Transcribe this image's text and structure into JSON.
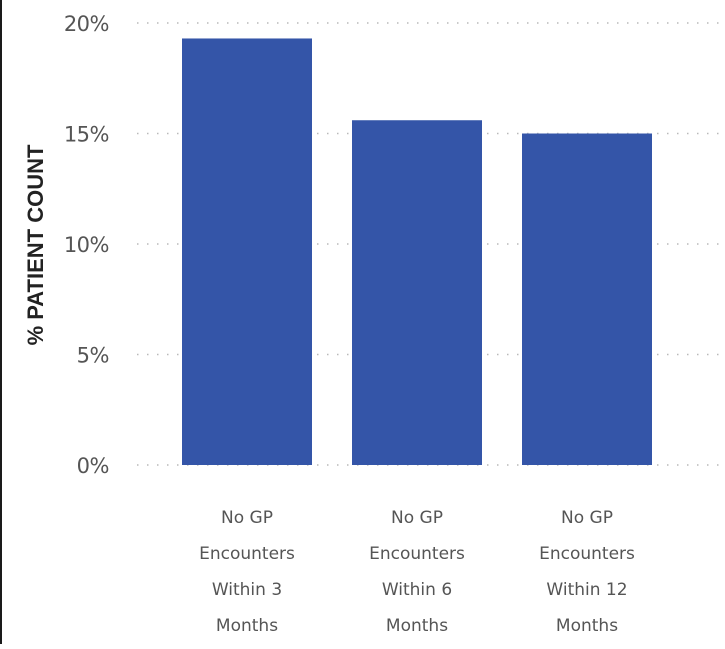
{
  "chart_data": {
    "type": "bar",
    "title": "",
    "xlabel": "",
    "ylabel": "% PATIENT COUNT",
    "ylim": [
      0,
      20
    ],
    "yticks": [
      0,
      5,
      10,
      15,
      20
    ],
    "ytick_labels": [
      "0%",
      "5%",
      "10%",
      "15%",
      "20%"
    ],
    "categories": [
      [
        "No GP",
        "Encounters",
        "Within 3",
        "Months"
      ],
      [
        "No GP",
        "Encounters",
        "Within 6",
        "Months"
      ],
      [
        "No GP",
        "Encounters",
        "Within 12",
        "Months"
      ]
    ],
    "values": [
      19.3,
      15.6,
      15.0
    ],
    "grid": true,
    "legend": "none",
    "bar_color": "#3455a8"
  }
}
